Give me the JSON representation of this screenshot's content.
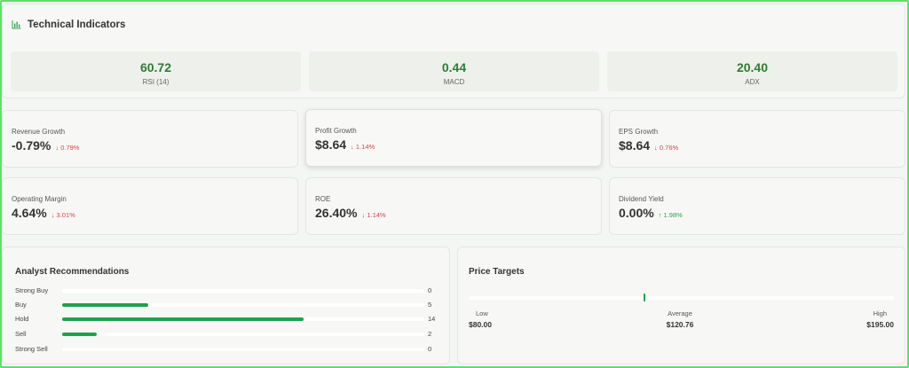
{
  "technical": {
    "title": "Technical Indicators",
    "icon": "bar-chart-icon",
    "accent": "#2e7d32",
    "indicators": [
      {
        "value": "60.72",
        "label": "RSI (14)"
      },
      {
        "value": "0.44",
        "label": "MACD"
      },
      {
        "value": "20.40",
        "label": "ADX"
      }
    ]
  },
  "metrics": [
    {
      "label": "Revenue Growth",
      "value": "-0.79%",
      "change": "0.79%",
      "direction": "down"
    },
    {
      "label": "Profit Growth",
      "value": "$8.64",
      "change": "1.14%",
      "direction": "down"
    },
    {
      "label": "EPS Growth",
      "value": "$8.64",
      "change": "0.76%",
      "direction": "down"
    },
    {
      "label": "Operating Margin",
      "value": "4.64%",
      "change": "3.01%",
      "direction": "down"
    },
    {
      "label": "ROE",
      "value": "26.40%",
      "change": "1.14%",
      "direction": "down"
    },
    {
      "label": "Dividend Yield",
      "value": "0.00%",
      "change": "1.98%",
      "direction": "up"
    }
  ],
  "analyst": {
    "title": "Analyst Recommendations",
    "bar_color": "#22a04a",
    "max_count": 21,
    "rows": [
      {
        "label": "Strong Buy",
        "count": "0",
        "value": 0
      },
      {
        "label": "Buy",
        "count": "5",
        "value": 5
      },
      {
        "label": "Hold",
        "count": "14",
        "value": 14
      },
      {
        "label": "Sell",
        "count": "2",
        "value": 2
      },
      {
        "label": "Strong Sell",
        "count": "0",
        "value": 0
      }
    ]
  },
  "price_targets": {
    "title": "Price Targets",
    "current_price": 80,
    "range_min": 0,
    "range_max": 195,
    "low": {
      "label": "Low",
      "value": "$80.00"
    },
    "average": {
      "label": "Average",
      "value": "$120.76"
    },
    "high": {
      "label": "High",
      "value": "$195.00"
    }
  }
}
